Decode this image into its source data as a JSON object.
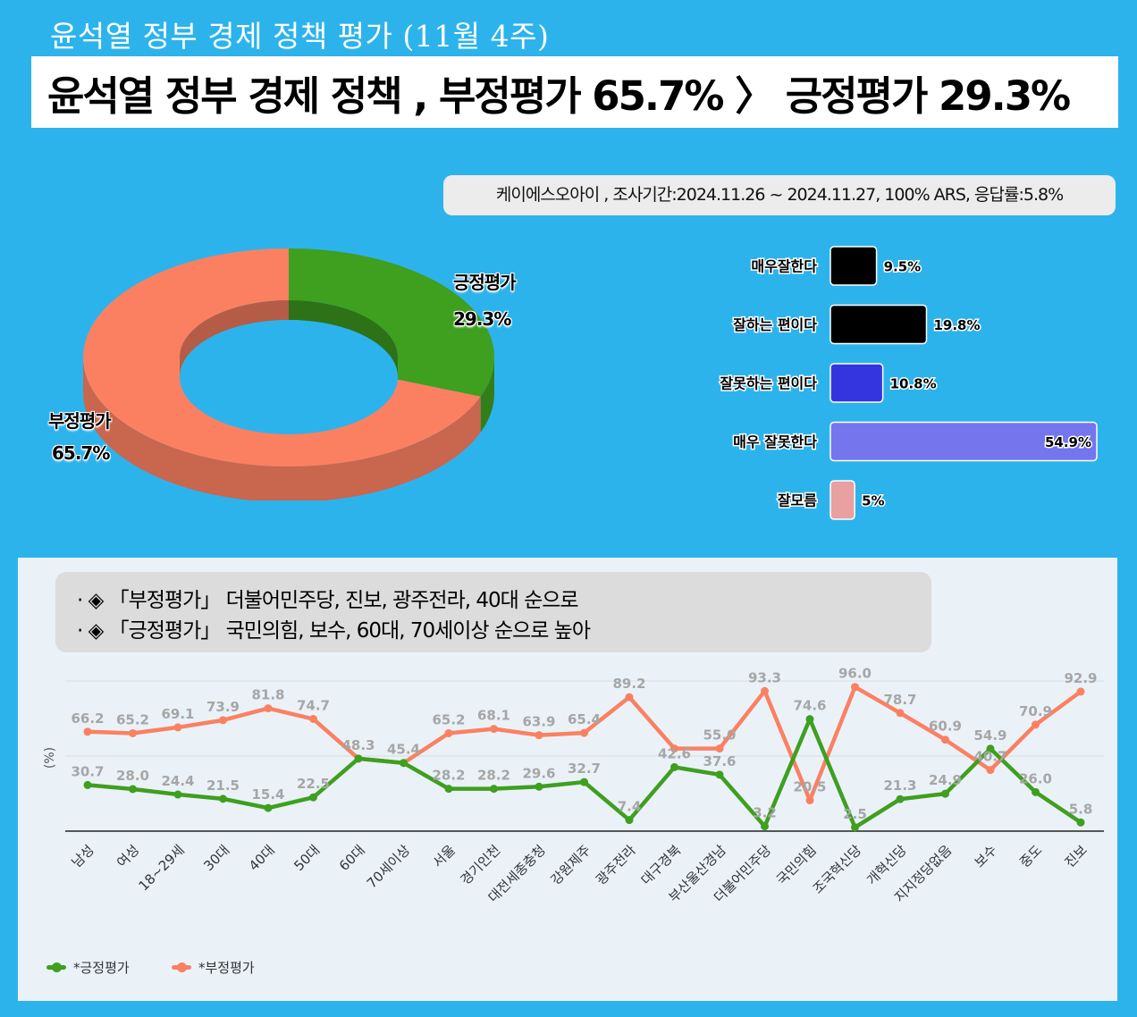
{
  "subtitle": "윤석열 정부 경제 정책 평가 (11월 4주)",
  "headline": "윤석열 정부 경제 정책 , 부정평가 65.7% 〉 긍정평가 29.3%",
  "source": "케이에스오아이 , 조사기간:2024.11.26 ~ 2024.11.27, 100% ARS, 응답률:5.8%",
  "notes": [
    "· ◈ 「부정평가」 더불어민주당, 진보, 광주전라, 40대 순으로",
    "· ◈ 「긍정평가」 국민의힘, 보수, 60대, 70세이상 순으로 높아"
  ],
  "colors": {
    "positive": "#3f9f1f",
    "negative": "#fb8062",
    "bar_very_good": "#000000",
    "bar_good": "#000000",
    "bar_bad": "#3535df",
    "bar_very_bad": "#7575ee",
    "bar_unknown": "#e8a0a0"
  },
  "chart_data": [
    {
      "type": "pie",
      "variant": "donut",
      "slices": [
        {
          "name": "긍정평가",
          "value": 29.3,
          "label": "29.3%",
          "color": "#3f9f1f"
        },
        {
          "name": "부정평가",
          "value": 65.7,
          "label": "65.7%",
          "color": "#fb8062"
        }
      ]
    },
    {
      "type": "bar",
      "orientation": "horizontal",
      "categories": [
        "매우잘한다",
        "잘하는 편이다",
        "잘못하는 편이다",
        "매우 잘못한다",
        "잘모름"
      ],
      "values": [
        9.5,
        19.8,
        10.8,
        54.9,
        5
      ],
      "labels": [
        "9.5%",
        "19.8%",
        "10.8%",
        "54.9%",
        "5%"
      ],
      "colors": [
        "#000000",
        "#000000",
        "#3535df",
        "#7575ee",
        "#e8a0a0"
      ]
    },
    {
      "type": "line",
      "ylabel": "(%)",
      "ylim": [
        0,
        100
      ],
      "grid": true,
      "legend": "bottom-left",
      "categories": [
        "남성",
        "여성",
        "18~29세",
        "30대",
        "40대",
        "50대",
        "60대",
        "70세이상",
        "서울",
        "경기인천",
        "대전세종충청",
        "강원제주",
        "광주전라",
        "대구경북",
        "부산울산경남",
        "더불어민주당",
        "국민의힘",
        "조국혁신당",
        "개혁신당",
        "지지정당없음",
        "보수",
        "중도",
        "진보"
      ],
      "series": [
        {
          "name": "*긍정평가",
          "color": "#3f9f1f",
          "values": [
            30.7,
            28.0,
            24.4,
            21.5,
            15.4,
            22.5,
            48.3,
            45.4,
            28.2,
            28.2,
            29.6,
            32.7,
            7.4,
            42.6,
            37.6,
            3.2,
            74.6,
            2.5,
            21.3,
            24.9,
            54.9,
            26.0,
            5.8
          ],
          "labels": [
            "30.7",
            "28.0",
            "24.4",
            "21.5",
            "15.4",
            "22.5",
            "48.3",
            "45.4",
            "28.2",
            "28.2",
            "29.6",
            "32.7",
            "7.4",
            "42.6",
            "37.6",
            "3.2",
            "74.6",
            "2.5",
            "21.3",
            "24.9",
            "54.9",
            "26.0",
            "5.8"
          ]
        },
        {
          "name": "*부정평가",
          "color": "#fb8062",
          "values": [
            66.2,
            65.2,
            69.1,
            73.9,
            81.8,
            74.7,
            48.3,
            45.4,
            65.2,
            68.1,
            63.9,
            65.4,
            89.2,
            55.0,
            55.0,
            93.3,
            20.5,
            96.0,
            78.7,
            60.9,
            40.7,
            70.9,
            92.9
          ],
          "labels": [
            "66.2",
            "65.2",
            "69.1",
            "73.9",
            "81.8",
            "74.7",
            "",
            "",
            "65.2",
            "68.1",
            "63.9",
            "65.4",
            "89.2",
            "",
            "55.0",
            "93.3",
            "20.5",
            "96.0",
            "78.7",
            "60.9",
            "40.7",
            "70.9",
            "92.9"
          ]
        }
      ]
    }
  ]
}
